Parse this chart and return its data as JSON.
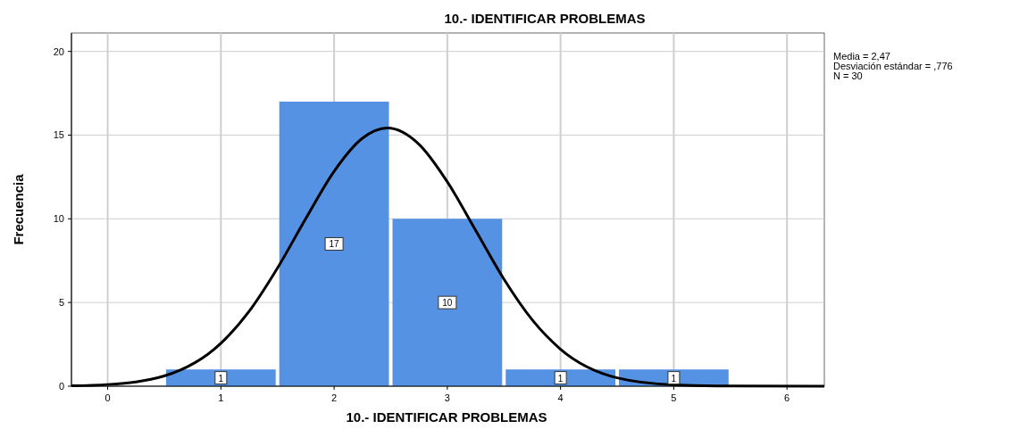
{
  "chart_data": {
    "type": "histogram",
    "title": "10.- IDENTIFICAR PROBLEMAS",
    "xlabel": "10.- IDENTIFICAR PROBLEMAS",
    "ylabel": "Frecuencia",
    "annotations": [
      "Media = 2,47",
      "Desviación estándar = ,776",
      "N = 30"
    ],
    "bins": [
      0.5,
      1.5,
      2.5,
      3.5,
      4.5,
      5.5
    ],
    "values": [
      1,
      17,
      10,
      1,
      1
    ],
    "color": "#5592e3",
    "value_labels": [
      "1",
      "17",
      "10",
      "1",
      "1"
    ],
    "series": [
      {
        "type": "line",
        "color": "#000000",
        "x": [
          -0.32,
          0,
          0.5,
          1,
          1.25,
          1.5,
          1.75,
          2,
          2.25,
          2.47,
          2.75,
          3,
          3.25,
          3.5,
          3.75,
          4,
          4.5,
          5,
          5.5,
          6.33
        ],
        "values": [
          0.02,
          0.1,
          0.61,
          2.56,
          4.48,
          7.06,
          10.02,
          12.84,
          14.81,
          15.42,
          14.45,
          12.21,
          9.31,
          6.39,
          3.96,
          2.21,
          0.5,
          0.08,
          0.01,
          0
        ]
      }
    ],
    "xlim": [
      -0.32,
      6.33
    ],
    "xticks": [
      0,
      1,
      2,
      3,
      4,
      5,
      6
    ],
    "ylim": [
      0,
      21.1
    ],
    "yticks": [
      0,
      5,
      10,
      15,
      20
    ],
    "grid": true,
    "line_style": "solid",
    "marker": "none"
  }
}
